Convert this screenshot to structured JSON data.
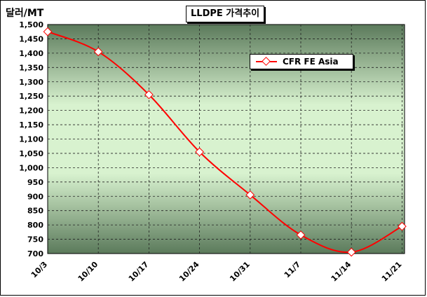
{
  "chart_data": {
    "type": "line",
    "title": "LLDPE 가격추이",
    "ylabel": "달러/MT",
    "xlabel": "",
    "categories": [
      "10/3",
      "10/10",
      "10/17",
      "10/24",
      "10/31",
      "11/7",
      "11/14",
      "11/21"
    ],
    "x_points": [
      0,
      1,
      2,
      3,
      4,
      5,
      6,
      7
    ],
    "series": [
      {
        "name": "CFR FE Asia",
        "color": "#ff0000",
        "x": [
          0,
          1,
          2,
          3,
          4,
          5,
          6,
          7
        ],
        "values": [
          1475,
          1405,
          1255,
          1055,
          905,
          765,
          705,
          795
        ]
      }
    ],
    "ylim": [
      700,
      1500
    ],
    "yticks": [
      "700",
      "750",
      "800",
      "850",
      "900",
      "950",
      "1,000",
      "1,050",
      "1,100",
      "1,150",
      "1,200",
      "1,250",
      "1,300",
      "1,350",
      "1,400",
      "1,450",
      "1,500"
    ],
    "ytick_values": [
      700,
      750,
      800,
      850,
      900,
      950,
      1000,
      1050,
      1100,
      1150,
      1200,
      1250,
      1300,
      1350,
      1400,
      1450,
      1500
    ],
    "grid": true,
    "legend_position": "top-right",
    "background": "gradient green (dark edges, light center)"
  }
}
